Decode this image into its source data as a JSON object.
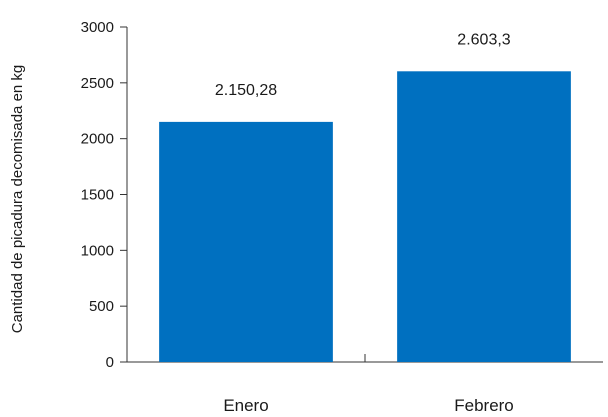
{
  "chart_data": {
    "type": "bar",
    "title": "",
    "xlabel": "",
    "ylabel": "Cantidad de picadura decomisada en kg",
    "categories": [
      "Enero",
      "Febrero"
    ],
    "values": [
      2150.28,
      2603.3
    ],
    "value_labels": [
      "2.150,28",
      "2.603,3"
    ],
    "ylim": [
      0,
      3000
    ],
    "yticks": [
      0,
      500,
      1000,
      1500,
      2000,
      2500,
      3000
    ],
    "ytick_labels": [
      "0",
      "500",
      "1000",
      "1500",
      "2000",
      "2500",
      "3000"
    ],
    "grid": false,
    "legend": "none",
    "bar_color": "#0070c0"
  }
}
